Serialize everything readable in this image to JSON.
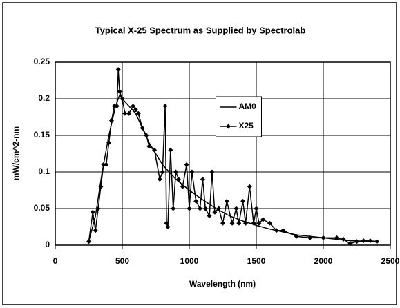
{
  "chart_data": {
    "type": "line",
    "title": "Typical X-25 Spectrum as Supplied by Spectrolab",
    "x_label": "Wavelength (nm)",
    "y_label": "mW/cm^2-nm",
    "xlim": [
      0,
      2500
    ],
    "xticks": [
      0,
      500,
      1000,
      1500,
      2000,
      2500
    ],
    "ylim": [
      0,
      0.25
    ],
    "yticks": [
      0,
      0.05,
      0.1,
      0.15,
      0.2,
      0.25
    ],
    "grid": true,
    "legend": "upper-center",
    "series": [
      {
        "name": "AM0",
        "color": "#000000",
        "marker": false,
        "x": [
          250,
          300,
          350,
          400,
          450,
          480,
          500,
          550,
          600,
          650,
          700,
          800,
          900,
          1000,
          1100,
          1200,
          1300,
          1400,
          1500,
          1600,
          1800,
          2000,
          2200,
          2400
        ],
        "values": [
          0.005,
          0.04,
          0.1,
          0.15,
          0.19,
          0.205,
          0.2,
          0.19,
          0.18,
          0.16,
          0.14,
          0.11,
          0.09,
          0.075,
          0.062,
          0.05,
          0.04,
          0.033,
          0.027,
          0.022,
          0.014,
          0.01,
          0.006,
          0.005
        ]
      },
      {
        "name": "X25",
        "color": "#000000",
        "marker": true,
        "x": [
          250,
          280,
          300,
          320,
          340,
          360,
          380,
          400,
          420,
          440,
          460,
          470,
          480,
          500,
          520,
          550,
          580,
          600,
          620,
          650,
          680,
          700,
          740,
          780,
          800,
          820,
          830,
          840,
          860,
          880,
          900,
          920,
          950,
          980,
          1000,
          1020,
          1050,
          1080,
          1100,
          1120,
          1150,
          1170,
          1190,
          1220,
          1250,
          1280,
          1320,
          1350,
          1370,
          1400,
          1420,
          1450,
          1480,
          1500,
          1520,
          1550,
          1600,
          1650,
          1700,
          1800,
          1900,
          2000,
          2100,
          2150,
          2200,
          2250,
          2300,
          2350,
          2400
        ],
        "values": [
          0.005,
          0.045,
          0.02,
          0.05,
          0.08,
          0.11,
          0.11,
          0.14,
          0.17,
          0.19,
          0.19,
          0.24,
          0.21,
          0.2,
          0.18,
          0.18,
          0.19,
          0.185,
          0.18,
          0.16,
          0.15,
          0.135,
          0.13,
          0.09,
          0.1,
          0.19,
          0.03,
          0.025,
          0.13,
          0.05,
          0.1,
          0.09,
          0.08,
          0.11,
          0.05,
          0.1,
          0.06,
          0.05,
          0.09,
          0.05,
          0.04,
          0.1,
          0.045,
          0.05,
          0.03,
          0.06,
          0.03,
          0.05,
          0.03,
          0.06,
          0.03,
          0.08,
          0.03,
          0.05,
          0.03,
          0.035,
          0.03,
          0.02,
          0.02,
          0.012,
          0.01,
          0.01,
          0.01,
          0.008,
          0.002,
          0.005,
          0.006,
          0.006,
          0.005
        ]
      }
    ]
  }
}
